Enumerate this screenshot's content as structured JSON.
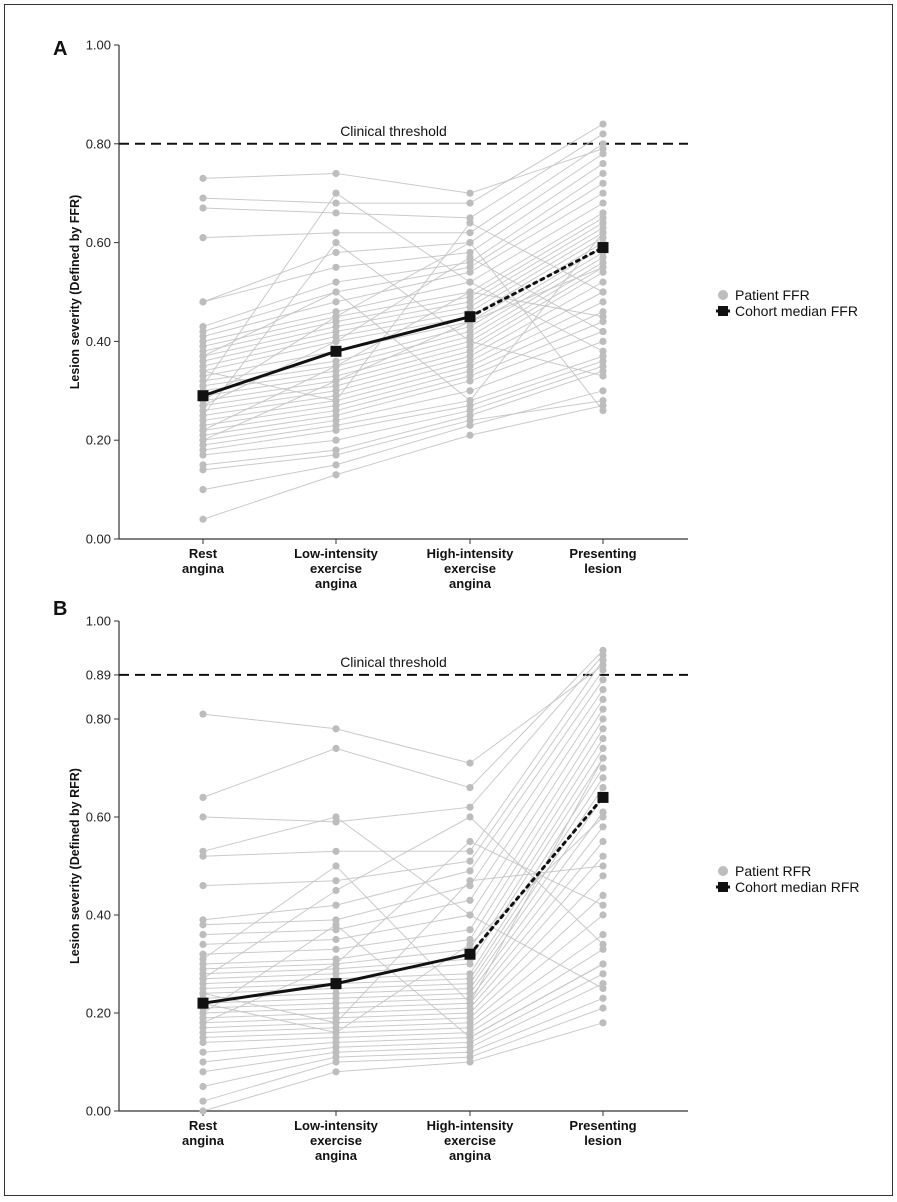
{
  "chart_data": [
    {
      "panel": "A",
      "type": "line",
      "ylabel": "Lesion severity (Defined by FFR)",
      "ylim": [
        0,
        1
      ],
      "y_ticks": [
        "0.00",
        "0.20",
        "0.40",
        "0.60",
        "0.80",
        "1.00"
      ],
      "categories": [
        [
          "Rest",
          "angina"
        ],
        [
          "Low-intensity",
          "exercise",
          "angina"
        ],
        [
          "High-intensity",
          "exercise",
          "angina"
        ],
        [
          "Presenting",
          "lesion"
        ]
      ],
      "threshold": {
        "value": 0.8,
        "label": "Clinical threshold"
      },
      "legend": {
        "patient": "Patient FFR",
        "median": "Cohort median FFR",
        "position": "right"
      },
      "series": [
        {
          "name": "Cohort median FFR",
          "values": [
            0.29,
            0.38,
            0.45,
            0.59
          ],
          "segment_styles": [
            "solid",
            "solid",
            "dotted"
          ]
        }
      ],
      "patients": [
        [
          0.04,
          0.13,
          0.21,
          0.27
        ],
        [
          0.1,
          0.15,
          0.23,
          0.3
        ],
        [
          0.14,
          0.17,
          0.24,
          0.28
        ],
        [
          0.15,
          0.18,
          0.25,
          0.34
        ],
        [
          0.17,
          0.2,
          0.26,
          0.35
        ],
        [
          0.18,
          0.22,
          0.27,
          0.36
        ],
        [
          0.19,
          0.23,
          0.28,
          0.37
        ],
        [
          0.2,
          0.24,
          0.3,
          0.4
        ],
        [
          0.21,
          0.25,
          0.32,
          0.42
        ],
        [
          0.22,
          0.26,
          0.33,
          0.44
        ],
        [
          0.23,
          0.27,
          0.34,
          0.46
        ],
        [
          0.24,
          0.28,
          0.35,
          0.48
        ],
        [
          0.25,
          0.29,
          0.36,
          0.5
        ],
        [
          0.26,
          0.3,
          0.37,
          0.52
        ],
        [
          0.27,
          0.31,
          0.38,
          0.54
        ],
        [
          0.28,
          0.32,
          0.39,
          0.55
        ],
        [
          0.29,
          0.33,
          0.4,
          0.56
        ],
        [
          0.3,
          0.34,
          0.41,
          0.57
        ],
        [
          0.31,
          0.35,
          0.42,
          0.58
        ],
        [
          0.32,
          0.36,
          0.43,
          0.59
        ],
        [
          0.33,
          0.38,
          0.44,
          0.6
        ],
        [
          0.34,
          0.4,
          0.45,
          0.61
        ],
        [
          0.35,
          0.41,
          0.46,
          0.62
        ],
        [
          0.36,
          0.42,
          0.47,
          0.63
        ],
        [
          0.37,
          0.43,
          0.48,
          0.64
        ],
        [
          0.38,
          0.44,
          0.49,
          0.65
        ],
        [
          0.39,
          0.45,
          0.5,
          0.66
        ],
        [
          0.4,
          0.46,
          0.52,
          0.68
        ],
        [
          0.41,
          0.48,
          0.54,
          0.7
        ],
        [
          0.42,
          0.5,
          0.55,
          0.72
        ],
        [
          0.43,
          0.52,
          0.56,
          0.74
        ],
        [
          0.48,
          0.55,
          0.58,
          0.76
        ],
        [
          0.48,
          0.58,
          0.6,
          0.78
        ],
        [
          0.61,
          0.62,
          0.62,
          0.8
        ],
        [
          0.67,
          0.66,
          0.65,
          0.82
        ],
        [
          0.69,
          0.68,
          0.68,
          0.84
        ],
        [
          0.73,
          0.74,
          0.7,
          0.79
        ],
        [
          0.22,
          0.35,
          0.5,
          0.45
        ],
        [
          0.25,
          0.6,
          0.4,
          0.33
        ],
        [
          0.28,
          0.45,
          0.6,
          0.26
        ],
        [
          0.31,
          0.7,
          0.52,
          0.38
        ],
        [
          0.34,
          0.28,
          0.64,
          0.5
        ],
        [
          0.37,
          0.5,
          0.28,
          0.62
        ],
        [
          0.27,
          0.4,
          0.57,
          0.42
        ],
        [
          0.2,
          0.32,
          0.44,
          0.55
        ]
      ]
    },
    {
      "panel": "B",
      "type": "line",
      "ylabel": "Lesion severity (Defined by RFR)",
      "ylim": [
        0,
        1
      ],
      "y_ticks": [
        "0.00",
        "0.20",
        "0.40",
        "0.60",
        "0.80",
        "0.89",
        "1.00"
      ],
      "categories": [
        [
          "Rest",
          "angina"
        ],
        [
          "Low-intensity",
          "exercise",
          "angina"
        ],
        [
          "High-intensity",
          "exercise",
          "angina"
        ],
        [
          "Presenting",
          "lesion"
        ]
      ],
      "threshold": {
        "value": 0.89,
        "label": "Clinical threshold"
      },
      "legend": {
        "patient": "Patient RFR",
        "median": "Cohort median RFR",
        "position": "right"
      },
      "series": [
        {
          "name": "Cohort median RFR",
          "values": [
            0.22,
            0.26,
            0.32,
            0.64
          ],
          "segment_styles": [
            "solid",
            "solid",
            "dotted"
          ]
        }
      ],
      "patients": [
        [
          0.0,
          0.08,
          0.1,
          0.18
        ],
        [
          0.02,
          0.1,
          0.11,
          0.21
        ],
        [
          0.05,
          0.11,
          0.12,
          0.23
        ],
        [
          0.08,
          0.12,
          0.13,
          0.26
        ],
        [
          0.1,
          0.13,
          0.14,
          0.28
        ],
        [
          0.12,
          0.14,
          0.15,
          0.3
        ],
        [
          0.14,
          0.15,
          0.16,
          0.33
        ],
        [
          0.15,
          0.16,
          0.17,
          0.36
        ],
        [
          0.16,
          0.17,
          0.18,
          0.4
        ],
        [
          0.17,
          0.18,
          0.19,
          0.44
        ],
        [
          0.18,
          0.19,
          0.2,
          0.48
        ],
        [
          0.19,
          0.2,
          0.21,
          0.52
        ],
        [
          0.2,
          0.21,
          0.22,
          0.55
        ],
        [
          0.21,
          0.22,
          0.23,
          0.58
        ],
        [
          0.22,
          0.23,
          0.24,
          0.61
        ],
        [
          0.23,
          0.24,
          0.25,
          0.64
        ],
        [
          0.24,
          0.25,
          0.26,
          0.66
        ],
        [
          0.25,
          0.26,
          0.27,
          0.68
        ],
        [
          0.26,
          0.27,
          0.28,
          0.7
        ],
        [
          0.27,
          0.28,
          0.3,
          0.72
        ],
        [
          0.28,
          0.29,
          0.31,
          0.74
        ],
        [
          0.29,
          0.3,
          0.33,
          0.76
        ],
        [
          0.3,
          0.31,
          0.35,
          0.78
        ],
        [
          0.32,
          0.33,
          0.37,
          0.8
        ],
        [
          0.34,
          0.35,
          0.4,
          0.82
        ],
        [
          0.36,
          0.37,
          0.43,
          0.84
        ],
        [
          0.38,
          0.39,
          0.46,
          0.86
        ],
        [
          0.39,
          0.42,
          0.49,
          0.88
        ],
        [
          0.46,
          0.47,
          0.51,
          0.9
        ],
        [
          0.52,
          0.53,
          0.53,
          0.92
        ],
        [
          0.6,
          0.59,
          0.62,
          0.93
        ],
        [
          0.64,
          0.74,
          0.66,
          0.94
        ],
        [
          0.81,
          0.78,
          0.71,
          0.91
        ],
        [
          0.53,
          0.6,
          0.4,
          0.25
        ],
        [
          0.27,
          0.45,
          0.6,
          0.34
        ],
        [
          0.24,
          0.18,
          0.47,
          0.5
        ],
        [
          0.31,
          0.5,
          0.22,
          0.72
        ],
        [
          0.18,
          0.3,
          0.55,
          0.42
        ],
        [
          0.2,
          0.38,
          0.15,
          0.3
        ],
        [
          0.22,
          0.16,
          0.34,
          0.6
        ]
      ]
    }
  ]
}
